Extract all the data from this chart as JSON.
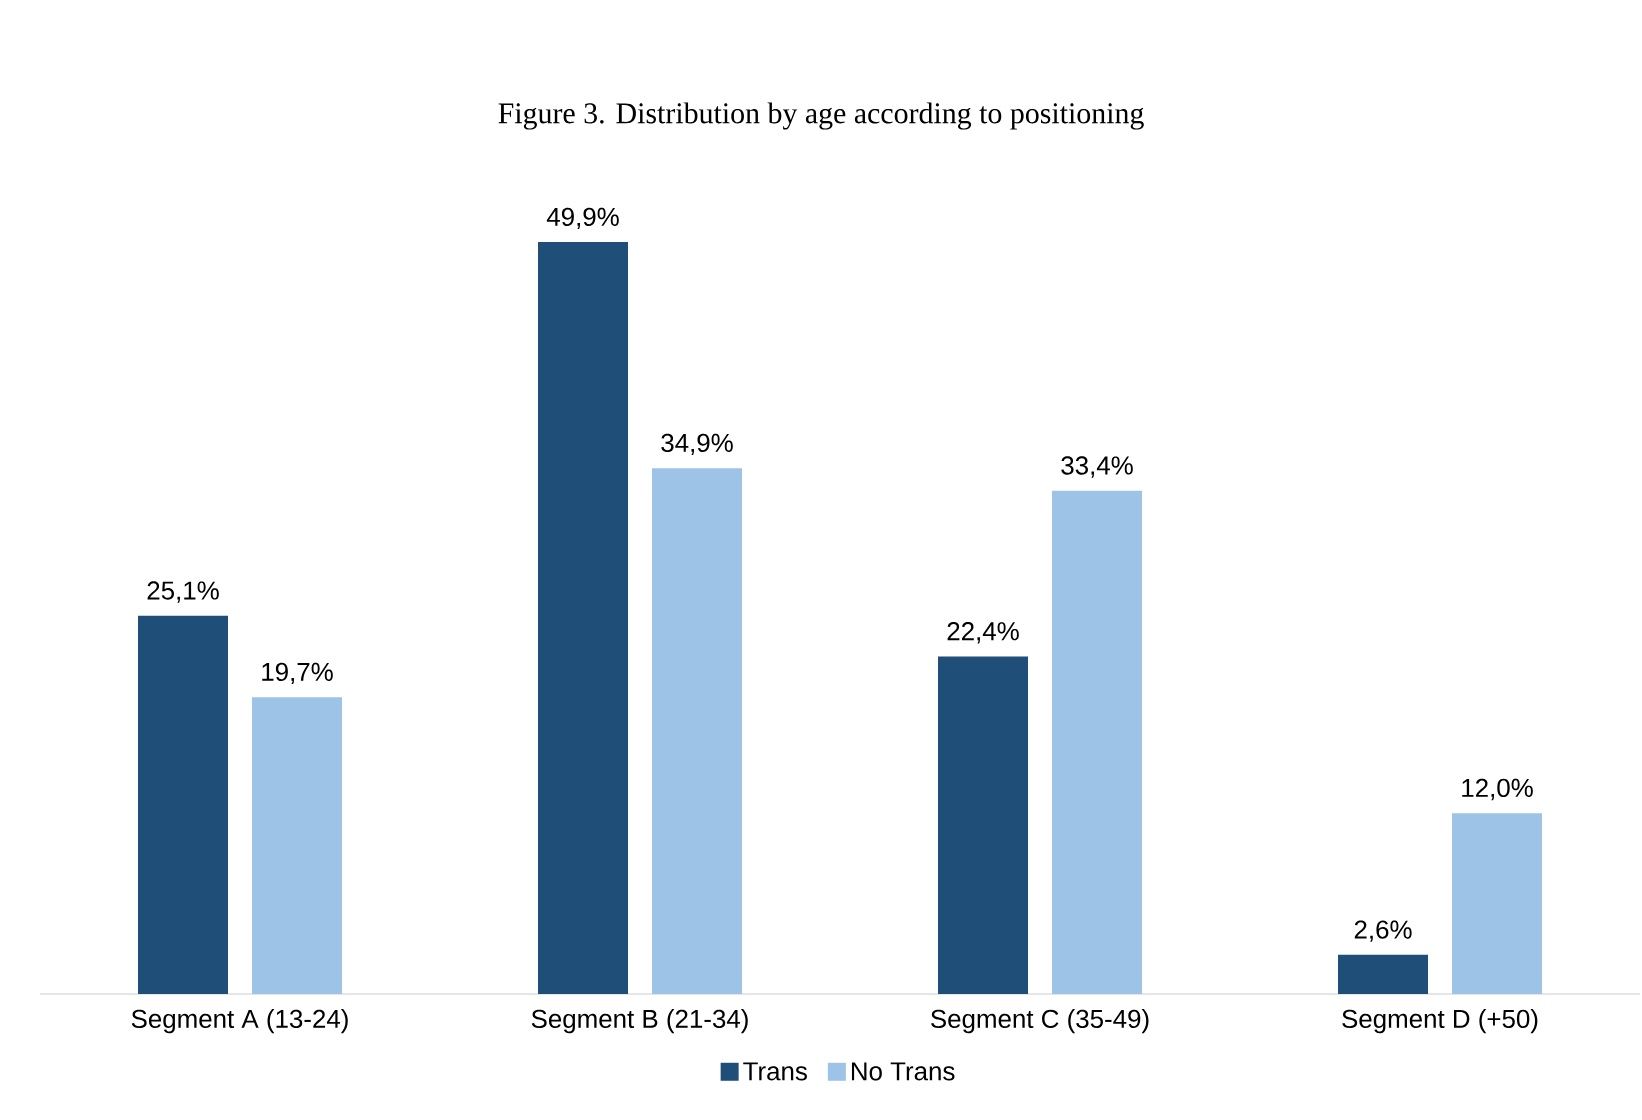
{
  "chart_data": {
    "type": "bar",
    "title": "Figure 3. Distribution by age according to positioning",
    "categories": [
      "Segment A (13-24)",
      "Segment B (21-34)",
      "Segment C (35-49)",
      "Segment D (+50)"
    ],
    "series": [
      {
        "name": "Trans",
        "color": "#1f4e79",
        "values": [
          25.1,
          49.9,
          22.4,
          2.6
        ],
        "value_labels": [
          "25,1%",
          "49,9%",
          "22,4%",
          "2,6%"
        ]
      },
      {
        "name": "No Trans",
        "color": "#9dc3e6",
        "values": [
          19.7,
          34.9,
          33.4,
          12.0
        ],
        "value_labels": [
          "19,7%",
          "34,9%",
          "33,4%",
          "12,0%"
        ]
      }
    ],
    "legend": "bottom"
  }
}
